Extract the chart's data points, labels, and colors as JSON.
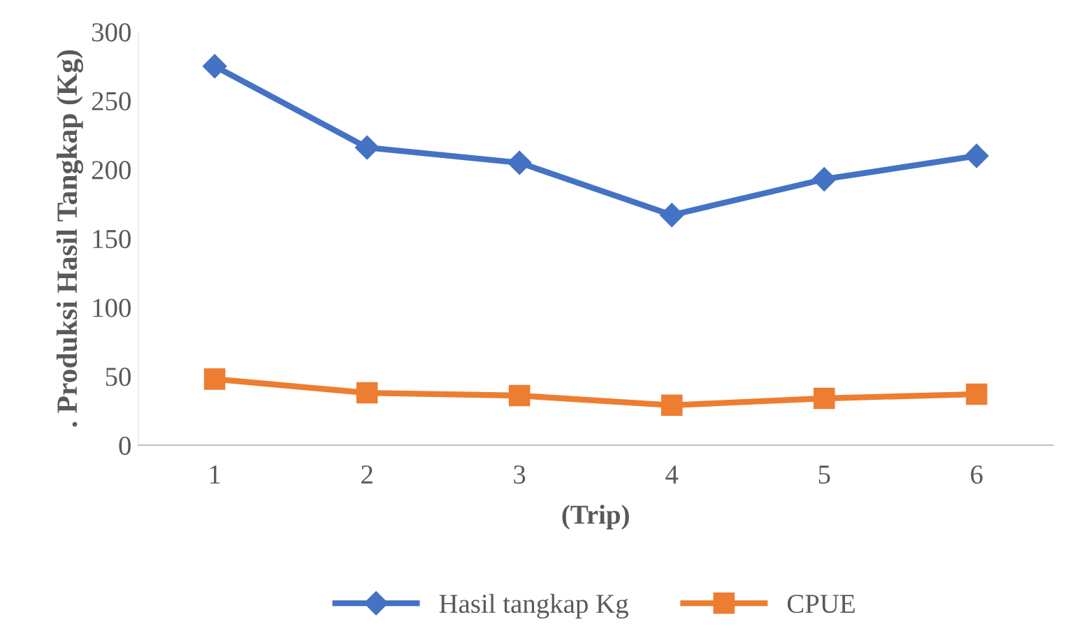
{
  "chart_data": {
    "type": "line",
    "xlabel": "(Trip)",
    "ylabel": ". Produksi Hasil Tangkap (Kg)",
    "categories": [
      "1",
      "2",
      "3",
      "4",
      "5",
      "6"
    ],
    "series": [
      {
        "name": "Hasil tangkap Kg",
        "color": "#4472c4",
        "marker": "diamond",
        "values": [
          275,
          216,
          205,
          167,
          193,
          210
        ]
      },
      {
        "name": "CPUE",
        "color": "#ed7d31",
        "marker": "square",
        "values": [
          48,
          38,
          36,
          29,
          34,
          37
        ]
      }
    ],
    "ylim": [
      0,
      300
    ],
    "yticks": [
      0,
      50,
      100,
      150,
      200,
      250,
      300
    ],
    "grid": false,
    "legend": "bottom",
    "line_style": "solid"
  }
}
